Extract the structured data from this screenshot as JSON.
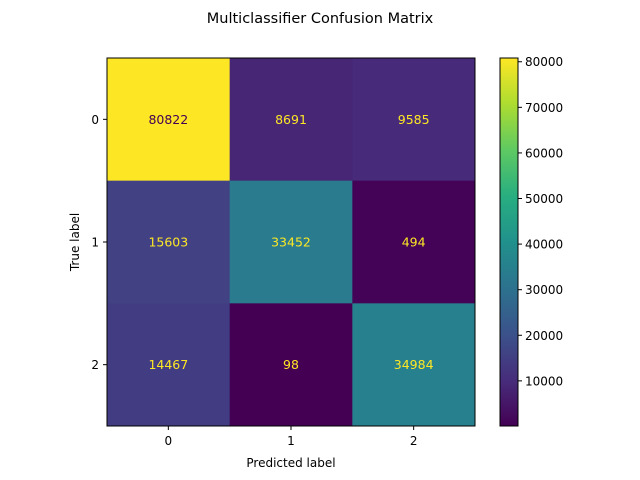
{
  "chart_data": {
    "type": "heatmap",
    "title": "Multiclassifier Confusion Matrix",
    "xlabel": "Predicted label",
    "ylabel": "True label",
    "x_categories": [
      "0",
      "1",
      "2"
    ],
    "y_categories": [
      "0",
      "1",
      "2"
    ],
    "matrix": [
      [
        80822,
        8691,
        9585
      ],
      [
        15603,
        33452,
        494
      ],
      [
        14467,
        98,
        34984
      ]
    ],
    "colormap": "viridis",
    "colorbar": {
      "min": 98,
      "max": 80822,
      "ticks": [
        10000,
        20000,
        30000,
        40000,
        50000,
        60000,
        70000,
        80000
      ],
      "tick_labels": [
        "10000",
        "20000",
        "30000",
        "40000",
        "50000",
        "60000",
        "70000",
        "80000"
      ]
    },
    "label_colors": {
      "on_dark": "#fde725",
      "on_light": "#440154"
    }
  }
}
